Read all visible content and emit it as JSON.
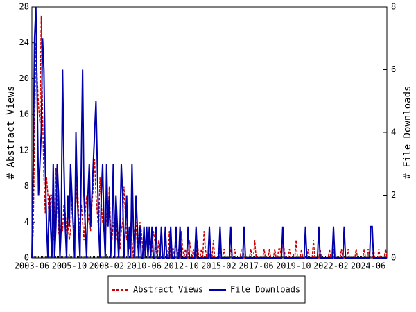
{
  "chart_data": {
    "type": "line",
    "categories": [
      "2003-06",
      null,
      null,
      null,
      null,
      null,
      null,
      null,
      null,
      null,
      null,
      null,
      null,
      null,
      null,
      null,
      null,
      null,
      null,
      null,
      null,
      null,
      null,
      null,
      null,
      null,
      null,
      null,
      "2005-10",
      null,
      null,
      null,
      null,
      null,
      null,
      null,
      null,
      null,
      null,
      null,
      null,
      null,
      null,
      null,
      null,
      null,
      null,
      null,
      null,
      null,
      null,
      null,
      null,
      null,
      null,
      null,
      "2008-02",
      null,
      null,
      null,
      null,
      null,
      null,
      null,
      null,
      null,
      null,
      null,
      null,
      null,
      null,
      null,
      null,
      null,
      null,
      null,
      null,
      null,
      null,
      null,
      null,
      null,
      null,
      null,
      "2010-06",
      null,
      null,
      null,
      null,
      null,
      null,
      null,
      null,
      null,
      null,
      null,
      null,
      null,
      null,
      null,
      null,
      null,
      null,
      null,
      null,
      null,
      null,
      null,
      null,
      null,
      null,
      null,
      "2012-10",
      null,
      null,
      null,
      null,
      null,
      null,
      null,
      null,
      null,
      null,
      null,
      null,
      null,
      null,
      null,
      null,
      null,
      null,
      null,
      null,
      null,
      null,
      null,
      null,
      null,
      null,
      null,
      "2015-02",
      null,
      null,
      null,
      null,
      null,
      null,
      null,
      null,
      null,
      null,
      null,
      null,
      null,
      null,
      null,
      null,
      null,
      null,
      null,
      null,
      null,
      null,
      null,
      null,
      null,
      null,
      null,
      "2017-06",
      null,
      null,
      null,
      null,
      null,
      null,
      null,
      null,
      null,
      null,
      null,
      null,
      null,
      null,
      null,
      null,
      null,
      null,
      null,
      null,
      null,
      null,
      null,
      null,
      null,
      null,
      null,
      "2019-10",
      null,
      null,
      null,
      null,
      null,
      null,
      null,
      null,
      null,
      null,
      null,
      null,
      null,
      null,
      null,
      null,
      null,
      null,
      null,
      null,
      null,
      null,
      null,
      null,
      null,
      null,
      null,
      "2022-02",
      null,
      null,
      null,
      null,
      null,
      null,
      null,
      null,
      null,
      null,
      null,
      null,
      null,
      null,
      null,
      null,
      null,
      null,
      null,
      null,
      null,
      null,
      null,
      null,
      null,
      null,
      null,
      "2024-06",
      null,
      null,
      null,
      null,
      null,
      null,
      null,
      null,
      null,
      null,
      null,
      null,
      null,
      null
    ],
    "series": [
      {
        "name": "Abstract Views",
        "color": "#cc0000",
        "dash": true,
        "axis": "y",
        "values": [
          0,
          3,
          14,
          24,
          20,
          17,
          15,
          27,
          16,
          9,
          5,
          9,
          7,
          4,
          7,
          7,
          2,
          4,
          10,
          6,
          3,
          2,
          4,
          3,
          6,
          5,
          3,
          4,
          2,
          3,
          7,
          4,
          3,
          6,
          9,
          5,
          3,
          6,
          4,
          2,
          5,
          7,
          4,
          5,
          3,
          6,
          8,
          11,
          7,
          5,
          3,
          9,
          6,
          4,
          3,
          2,
          5,
          4,
          8,
          3,
          2,
          4,
          3,
          6,
          2,
          3,
          1,
          3,
          4,
          8,
          5,
          2,
          3,
          1,
          4,
          2,
          0,
          3,
          4,
          1,
          2,
          4,
          3,
          1,
          2,
          0,
          3,
          1,
          2,
          0,
          1,
          3,
          2,
          1,
          0,
          2,
          1,
          3,
          0,
          0,
          2,
          1,
          0,
          3,
          0,
          1,
          1,
          0,
          2,
          0,
          1,
          0,
          3,
          1,
          0,
          1,
          0,
          0,
          2,
          1,
          0,
          1,
          0,
          0,
          2,
          0,
          0,
          1,
          0,
          3,
          1,
          0,
          0,
          0,
          1,
          0,
          2,
          0,
          0,
          0,
          1,
          0,
          0,
          0,
          1,
          0,
          0,
          0,
          0,
          1,
          0,
          0,
          1,
          0,
          0,
          0,
          0,
          1,
          1,
          0,
          0,
          0,
          0,
          0,
          1,
          0,
          0,
          2,
          0,
          0,
          0,
          0,
          0,
          0,
          1,
          0,
          0,
          0,
          1,
          0,
          0,
          0,
          1,
          0,
          0,
          1,
          1,
          0,
          2,
          1,
          0,
          0,
          0,
          1,
          0,
          0,
          0,
          0,
          2,
          0,
          0,
          0,
          1,
          0,
          0,
          0,
          0,
          1,
          0,
          0,
          0,
          2,
          0,
          0,
          0,
          0,
          1,
          0,
          0,
          0,
          0,
          0,
          0,
          1,
          0,
          0,
          1,
          0,
          0,
          0,
          0,
          0,
          1,
          0,
          0,
          0,
          0,
          1,
          0,
          0,
          0,
          0,
          0,
          1,
          0,
          0,
          0,
          0,
          0,
          1,
          0,
          0,
          1,
          0,
          0,
          0,
          1,
          0,
          0,
          0,
          1,
          0,
          0,
          0,
          0,
          1,
          0
        ]
      },
      {
        "name": "File Downloads",
        "color": "#0000aa",
        "dash": false,
        "axis": "y2",
        "values": [
          0,
          3,
          7,
          8,
          5,
          2,
          3,
          4,
          7,
          6,
          3,
          1,
          0,
          2,
          1,
          0,
          3,
          0,
          1,
          3,
          2,
          0,
          1,
          6,
          3,
          1,
          0,
          2,
          1,
          3,
          2,
          1,
          0,
          4,
          2,
          1,
          0,
          3,
          6,
          2,
          1,
          0,
          2,
          3,
          1,
          2,
          3,
          4,
          5,
          3,
          1,
          0,
          2,
          3,
          1,
          0,
          3,
          1,
          2,
          0,
          1,
          3,
          0,
          2,
          1,
          0,
          1,
          3,
          2,
          0,
          1,
          2,
          0,
          1,
          0,
          3,
          1,
          0,
          2,
          1,
          0,
          1,
          0,
          0,
          1,
          0,
          1,
          0,
          1,
          0,
          1,
          0,
          0,
          1,
          0,
          0,
          0,
          1,
          0,
          0,
          1,
          0,
          0,
          0,
          1,
          0,
          0,
          0,
          1,
          0,
          0,
          1,
          0,
          0,
          0,
          0,
          0,
          1,
          0,
          0,
          0,
          0,
          0,
          1,
          0,
          0,
          0,
          0,
          0,
          0,
          0,
          0,
          0,
          1,
          0,
          0,
          0,
          0,
          0,
          0,
          0,
          1,
          0,
          0,
          0,
          0,
          0,
          0,
          0,
          1,
          0,
          0,
          0,
          0,
          0,
          0,
          0,
          0,
          0,
          1,
          0,
          0,
          0,
          0,
          0,
          0,
          0,
          0,
          0,
          0,
          0,
          0,
          0,
          0,
          0,
          0,
          0,
          0,
          0,
          0,
          0,
          0,
          0,
          0,
          0,
          0,
          0,
          0,
          1,
          0,
          0,
          0,
          0,
          0,
          0,
          0,
          0,
          0,
          0,
          0,
          0,
          0,
          0,
          0,
          0,
          1,
          0,
          0,
          0,
          0,
          0,
          0,
          0,
          0,
          0,
          1,
          0,
          0,
          0,
          0,
          0,
          0,
          0,
          0,
          0,
          0,
          1,
          0,
          0,
          0,
          0,
          0,
          0,
          0,
          1,
          0,
          0,
          0,
          0,
          0,
          0,
          0,
          0,
          0,
          0,
          0,
          0,
          0,
          0,
          0,
          0,
          0,
          0,
          0,
          1,
          1,
          0,
          0,
          0,
          0,
          0,
          0,
          0,
          0,
          0,
          0,
          0
        ]
      }
    ],
    "ylabel": "# Abstract Views",
    "y2label": "# File Downloads",
    "ylim": [
      0,
      28
    ],
    "yticks": [
      0,
      4,
      8,
      12,
      16,
      20,
      24,
      28
    ],
    "y2lim": [
      0,
      8
    ],
    "y2ticks": [
      0,
      2,
      4,
      6,
      8
    ]
  }
}
